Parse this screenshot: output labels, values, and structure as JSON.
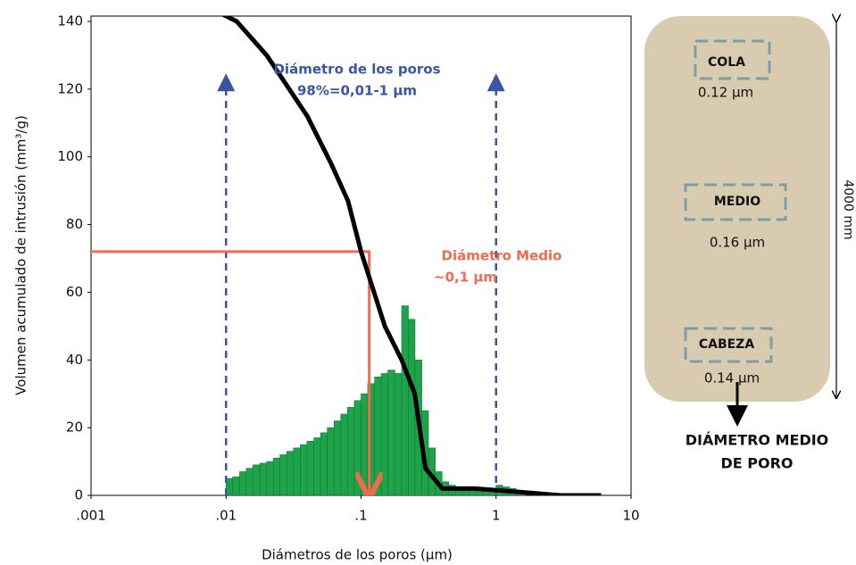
{
  "chart_data": {
    "type": "histogram",
    "x_label": "Diámetros de los poros (µm)",
    "y_label": "Volumen acumulado de intrusión (mm³/g)",
    "log_x": true,
    "xlim": [
      0.001,
      10
    ],
    "xticks": [
      {
        "value": 0.001,
        "label": ".001"
      },
      {
        "value": 0.01,
        "label": ".01"
      },
      {
        "value": 0.1,
        "label": ".1"
      },
      1,
      10
    ],
    "ylim": [
      0,
      140
    ],
    "yticks": [
      0,
      20,
      40,
      60,
      80,
      100,
      120,
      140
    ],
    "color": "#1fa34a",
    "bins": [
      0.01,
      0.0112,
      0.0126,
      0.0141,
      0.0158,
      0.0178,
      0.02,
      0.0224,
      0.0251,
      0.0282,
      0.0316,
      0.0355,
      0.0398,
      0.0447,
      0.0501,
      0.0562,
      0.0631,
      0.0708,
      0.0794,
      0.0891,
      0.1,
      0.112,
      0.126,
      0.141,
      0.158,
      0.178,
      0.2,
      0.224,
      0.251,
      0.282,
      0.316,
      0.355,
      0.398,
      0.447,
      0.501,
      0.562,
      0.631,
      0.708,
      0.794,
      0.891,
      1,
      1.12,
      1.26,
      1.41,
      1.58
    ],
    "values": [
      5,
      5.5,
      7,
      8,
      9,
      9.5,
      10,
      11,
      12,
      13,
      14,
      15,
      16,
      17,
      18.5,
      20,
      22,
      24,
      26,
      28,
      30,
      33,
      35,
      36,
      37,
      36,
      56,
      52,
      40,
      25,
      14,
      7,
      4,
      3,
      2,
      2,
      1.5,
      1.5,
      1.5,
      2,
      3,
      2.5,
      2,
      1.5
    ],
    "cumulative": {
      "color": "#000000",
      "x": [
        0.0085,
        0.012,
        0.02,
        0.04,
        0.06,
        0.08,
        0.1,
        0.15,
        0.2,
        0.25,
        0.3,
        0.4,
        0.7,
        1.5,
        3,
        6
      ],
      "values": [
        143,
        140,
        130,
        112,
        98,
        87,
        72,
        50,
        40,
        30,
        8,
        2,
        2,
        1,
        0,
        0
      ]
    },
    "range_marker": {
      "x": [
        0.01,
        1
      ],
      "top": 122,
      "color": "#3a55a4",
      "text": [
        "Diámetro de los poros",
        "98%=0,01-1 µm"
      ]
    },
    "median_marker": {
      "x": 0.115,
      "y": 72,
      "color": "#f06a50",
      "text": [
        "Diámetro Medio",
        "~0,1 µm"
      ]
    }
  },
  "side_panel": {
    "samples": [
      {
        "label": "COLA",
        "value": "0.12 µm"
      },
      {
        "label": "MEDIO",
        "value": "0.16 µm"
      },
      {
        "label": "CABEZA",
        "value": "0.14 µm"
      }
    ],
    "length_label": "4000 mm",
    "caption": [
      "DIÁMETRO MEDIO",
      "DE PORO"
    ]
  }
}
